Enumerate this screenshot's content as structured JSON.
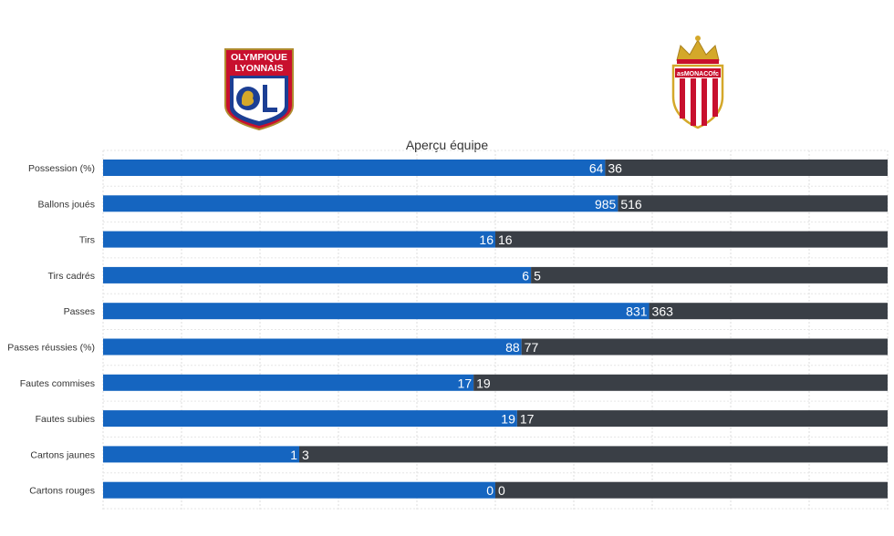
{
  "teams": {
    "home": {
      "logo_text_line1": "OLYMPIQUE",
      "logo_text_line2": "LYONNAIS",
      "logo_monogram": "OL",
      "color": "#1565c0"
    },
    "away": {
      "logo_text": "asMONACOfc",
      "color": "#3a3f46"
    }
  },
  "chart_data": {
    "type": "bar",
    "orientation": "horizontal-stacked-100",
    "title": "Aperçu équipe",
    "categories": [
      "Possession (%)",
      "Ballons joués",
      "Tirs",
      "Tirs cadrés",
      "Passes",
      "Passes réussies (%)",
      "Fautes commises",
      "Fautes subies",
      "Cartons jaunes",
      "Cartons rouges"
    ],
    "series": [
      {
        "values": [
          64,
          985,
          16,
          6,
          831,
          88,
          17,
          19,
          1,
          0
        ],
        "color": "#1565c0"
      },
      {
        "values": [
          36,
          516,
          16,
          5,
          363,
          77,
          19,
          17,
          3,
          0
        ],
        "color": "#3a3f46"
      }
    ],
    "grid": true
  }
}
